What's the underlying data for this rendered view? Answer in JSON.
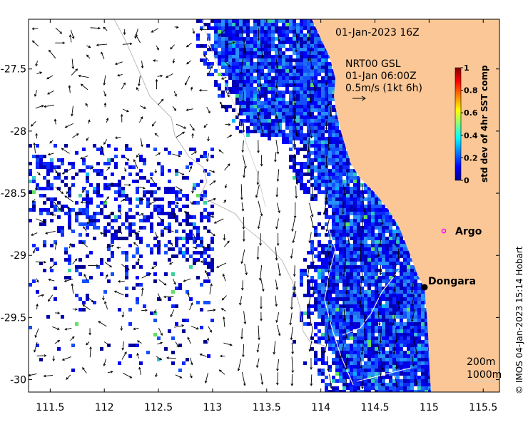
{
  "map": {
    "timestamp": "01-Jan-2023 16Z",
    "current_source": {
      "line1": "NRT00 GSL",
      "line2": "01-Jan 06:00Z",
      "line3": "0.5m/s (1kt 6h)"
    },
    "places": [
      {
        "name": "Argo",
        "lon": 115.11,
        "lat": -28.72,
        "marker": "magenta-circle"
      },
      {
        "name": "Dongara",
        "lon": 114.93,
        "lat": -29.25,
        "marker": "black-dot"
      }
    ],
    "isobaths": [
      "200m",
      "1000m"
    ],
    "credit": "© IMOS 04-Jan-2023 15:14 Hobart",
    "x_axis": {
      "ticks": [
        111.5,
        112,
        112.5,
        113,
        113.5,
        114,
        114.5,
        115,
        115.5
      ],
      "labels": [
        "111.5",
        "112",
        "112.5",
        "113",
        "113.5",
        "114",
        "114.5",
        "115",
        "115.5"
      ],
      "range": [
        111.3,
        115.65
      ]
    },
    "y_axis": {
      "ticks": [
        -27.5,
        -28,
        -28.5,
        -29,
        -29.5,
        -30
      ],
      "labels": [
        "-27.5",
        "-28",
        "-28.5",
        "-29",
        "-29.5",
        "-30"
      ],
      "range": [
        -30.1,
        -27.1
      ]
    },
    "colors": {
      "land": "#fbc796",
      "coastline": "#aaaaaa",
      "isobath": "#ffffff",
      "argo_marker": "#ff00ff"
    }
  },
  "colorbar": {
    "label": "std dev of 4hr SST comp",
    "ticks": [
      "0",
      "0.2",
      "0.4",
      "0.6",
      "0.8",
      "1"
    ],
    "range": [
      0,
      1
    ],
    "colormap": [
      "#00008f",
      "#0000ff",
      "#0080ff",
      "#00ffff",
      "#80ff80",
      "#ffff00",
      "#ff8000",
      "#ff0000",
      "#800000"
    ]
  }
}
